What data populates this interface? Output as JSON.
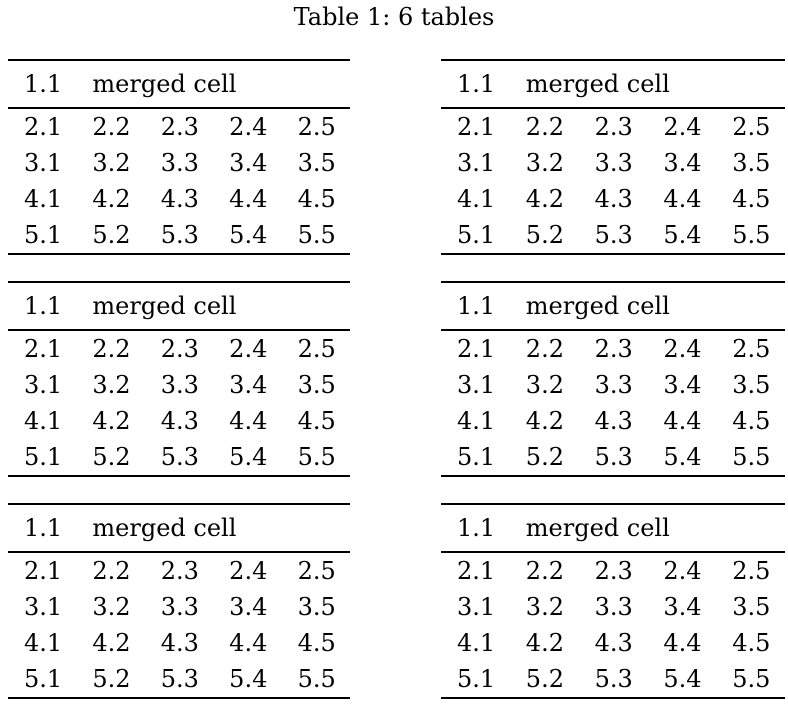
{
  "caption": "Table 1: 6 tables",
  "table_count": 6,
  "table": {
    "header": {
      "col1": "1.1",
      "merged": "merged cell"
    },
    "rows": [
      [
        "2.1",
        "2.2",
        "2.3",
        "2.4",
        "2.5"
      ],
      [
        "3.1",
        "3.2",
        "3.3",
        "3.4",
        "3.5"
      ],
      [
        "4.1",
        "4.2",
        "4.3",
        "4.4",
        "4.5"
      ],
      [
        "5.1",
        "5.2",
        "5.3",
        "5.4",
        "5.5"
      ]
    ]
  },
  "colors": {
    "background": "#ffffff",
    "text": "#000000",
    "rule": "#000000"
  }
}
